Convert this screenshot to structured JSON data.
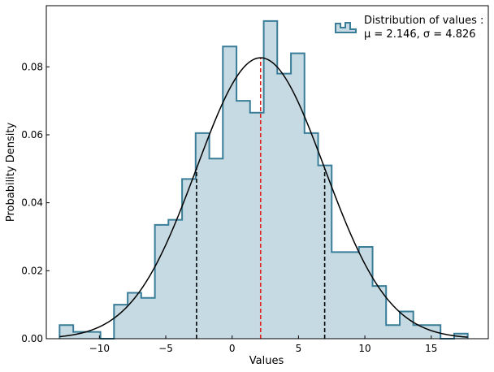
{
  "chart_data": {
    "type": "histogram",
    "xlabel": "Values",
    "ylabel": "Probability Density",
    "xlim": [
      -14.0,
      19.3
    ],
    "ylim": [
      0.0,
      0.098
    ],
    "xticks": [
      -10,
      -5,
      0,
      5,
      10,
      15
    ],
    "xtick_labels": [
      "−10",
      "−5",
      "0",
      "5",
      "10",
      "15"
    ],
    "yticks": [
      0.0,
      0.02,
      0.04,
      0.06,
      0.08
    ],
    "ytick_labels": [
      "0.00",
      "0.02",
      "0.04",
      "0.06",
      "0.08"
    ],
    "grid": false,
    "legend_position": "top-right",
    "series": [
      {
        "name": "Distribution of values :",
        "name_line2": "μ = 2.146, σ = 4.826",
        "kind": "step-filled-histogram",
        "fill_color": "#c5dae2",
        "edge_color": "#3a7d99",
        "bin_edges": [
          -13.0,
          -11.97,
          -10.95,
          -9.92,
          -8.9,
          -7.87,
          -6.85,
          -5.82,
          -4.8,
          -3.77,
          -2.75,
          -1.72,
          -0.7,
          0.33,
          1.35,
          2.38,
          3.4,
          4.43,
          5.45,
          6.48,
          7.5,
          8.53,
          9.55,
          10.58,
          11.6,
          12.63,
          13.65,
          14.68,
          15.7,
          16.73,
          17.75
        ],
        "density": [
          0.004,
          0.002,
          0.002,
          0.0,
          0.01,
          0.0135,
          0.012,
          0.0335,
          0.035,
          0.047,
          0.0605,
          0.053,
          0.086,
          0.07,
          0.0665,
          0.0935,
          0.078,
          0.084,
          0.0605,
          0.051,
          0.0255,
          0.0255,
          0.027,
          0.0155,
          0.004,
          0.008,
          0.004,
          0.004,
          0.0,
          0.0015
        ]
      },
      {
        "kind": "normal-pdf",
        "mu": 2.146,
        "sigma": 4.826,
        "color": "#000000"
      }
    ],
    "vlines": [
      {
        "x": 2.146,
        "color": "#e0201c",
        "style": "dashed"
      },
      {
        "x": -2.68,
        "color": "#000000",
        "style": "dashed"
      },
      {
        "x": 6.972,
        "color": "#000000",
        "style": "dashed"
      }
    ]
  }
}
